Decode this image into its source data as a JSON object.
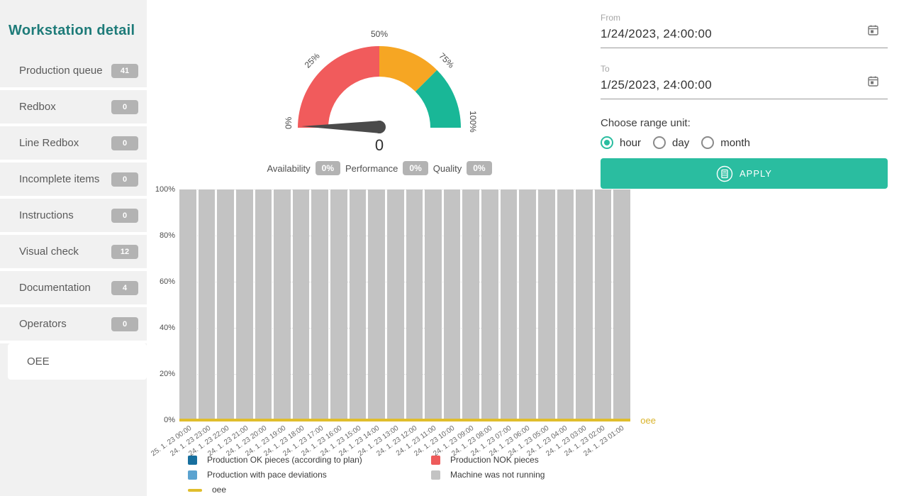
{
  "sidebar": {
    "title": "Workstation detail",
    "items": [
      {
        "label": "Production queue",
        "badge": "41"
      },
      {
        "label": "Redbox",
        "badge": "0"
      },
      {
        "label": "Line Redbox",
        "badge": "0"
      },
      {
        "label": "Incomplete items",
        "badge": "0"
      },
      {
        "label": "Instructions",
        "badge": "0"
      },
      {
        "label": "Visual check",
        "badge": "12"
      },
      {
        "label": "Documentation",
        "badge": "4"
      },
      {
        "label": "Operators",
        "badge": "0"
      },
      {
        "label": "OEE",
        "selected": true
      }
    ]
  },
  "filter": {
    "from": {
      "label": "From",
      "value": "1/24/2023, 24:00:00"
    },
    "to": {
      "label": "To",
      "value": "1/25/2023, 24:00:00"
    },
    "range_unit": {
      "label": "Choose range unit:",
      "options": [
        "hour",
        "day",
        "month"
      ],
      "selected": "hour"
    },
    "apply_label": "APPLY"
  },
  "colors": {
    "accent_teal": "#2abda0",
    "heading_teal": "#1e7b79",
    "badge_gray": "#b3b3b3",
    "needle": "#4a4a4a",
    "oee_line": "#e0bd2c",
    "bar_gray": "#c3c3c3"
  },
  "chart_data": [
    {
      "type": "gauge",
      "title": "OEE gauge",
      "value": 0,
      "value_label": "0",
      "min": 0,
      "max": 100,
      "ticks": [
        "0%",
        "25%",
        "50%",
        "75%",
        "100%"
      ],
      "segments": [
        {
          "from": 0,
          "to": 50,
          "color": "#f15b5c"
        },
        {
          "from": 50,
          "to": 75,
          "color": "#f6a623"
        },
        {
          "from": 75,
          "to": 100,
          "color": "#19b797"
        }
      ],
      "metrics": [
        {
          "label": "Availability",
          "value": "0%"
        },
        {
          "label": "Performance",
          "value": "0%"
        },
        {
          "label": "Quality",
          "value": "0%"
        }
      ]
    },
    {
      "type": "bar",
      "stacked": true,
      "ylim": [
        0,
        100
      ],
      "yticks": [
        "100%",
        "80%",
        "60%",
        "40%",
        "20%",
        "0%"
      ],
      "x": [
        "25. 1. 23 00:00",
        "24. 1. 23 23:00",
        "24. 1. 23 22:00",
        "24. 1. 23 21:00",
        "24. 1. 23 20:00",
        "24. 1. 23 19:00",
        "24. 1. 23 18:00",
        "24. 1. 23 17:00",
        "24. 1. 23 16:00",
        "24. 1. 23 15:00",
        "24. 1. 23 14:00",
        "24. 1. 23 13:00",
        "24. 1. 23 12:00",
        "24. 1. 23 11:00",
        "24. 1. 23 10:00",
        "24. 1. 23 09:00",
        "24. 1. 23 08:00",
        "24. 1. 23 07:00",
        "24. 1. 23 06:00",
        "24. 1. 23 05:00",
        "24. 1. 23 04:00",
        "24. 1. 23 03:00",
        "24. 1. 23 02:00",
        "24. 1. 23 01:00"
      ],
      "series": [
        {
          "name": "Production OK pieces (according to plan)",
          "color": "#176f9e",
          "values": [
            0,
            0,
            0,
            0,
            0,
            0,
            0,
            0,
            0,
            0,
            0,
            0,
            0,
            0,
            0,
            0,
            0,
            0,
            0,
            0,
            0,
            0,
            0,
            0
          ]
        },
        {
          "name": "Production NOK pieces",
          "color": "#ee5b5b",
          "values": [
            0,
            0,
            0,
            0,
            0,
            0,
            0,
            0,
            0,
            0,
            0,
            0,
            0,
            0,
            0,
            0,
            0,
            0,
            0,
            0,
            0,
            0,
            0,
            0
          ]
        },
        {
          "name": "Production with pace deviations",
          "color": "#5ba3d0",
          "values": [
            0,
            0,
            0,
            0,
            0,
            0,
            0,
            0,
            0,
            0,
            0,
            0,
            0,
            0,
            0,
            0,
            0,
            0,
            0,
            0,
            0,
            0,
            0,
            0
          ]
        },
        {
          "name": "Machine was not running",
          "color": "#c3c3c3",
          "values": [
            100,
            100,
            100,
            100,
            100,
            100,
            100,
            100,
            100,
            100,
            100,
            100,
            100,
            100,
            100,
            100,
            100,
            100,
            100,
            100,
            100,
            100,
            100,
            100
          ]
        },
        {
          "name": "oee",
          "type": "line",
          "color": "#e0bd2c",
          "values": [
            0,
            0,
            0,
            0,
            0,
            0,
            0,
            0,
            0,
            0,
            0,
            0,
            0,
            0,
            0,
            0,
            0,
            0,
            0,
            0,
            0,
            0,
            0,
            0
          ]
        }
      ]
    }
  ]
}
